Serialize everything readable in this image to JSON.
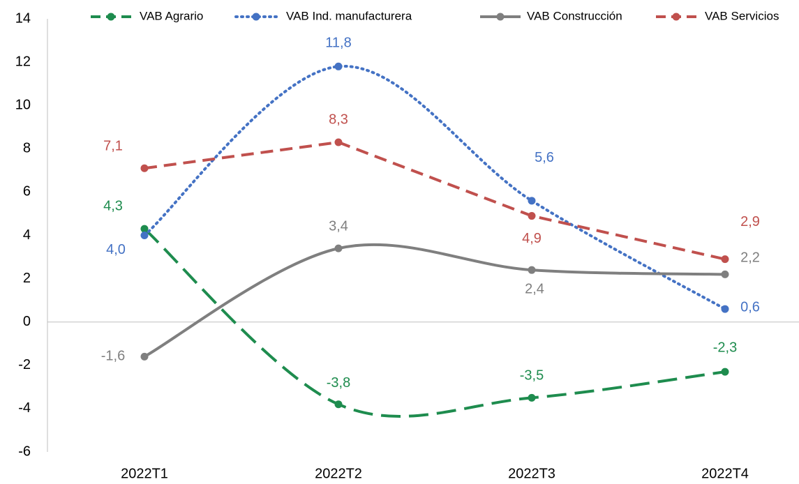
{
  "chart_data": {
    "type": "line",
    "categories": [
      "2022T1",
      "2022T2",
      "2022T3",
      "2022T4"
    ],
    "ylim": [
      -6,
      14
    ],
    "yticks": [
      -6,
      -4,
      -2,
      0,
      2,
      4,
      6,
      8,
      10,
      12,
      14
    ],
    "grid": false,
    "legend": "top",
    "series": [
      {
        "name": "VAB Agrario",
        "color": "#1e8c4e",
        "dash": "long-dash",
        "smooth": true,
        "values": [
          4.3,
          -3.8,
          -3.5,
          -2.3
        ],
        "value_labels": [
          "4,3",
          "-3,8",
          "-3,5",
          "-2,3"
        ]
      },
      {
        "name": "VAB Ind. manufacturera",
        "color": "#4472c4",
        "dash": "dot",
        "smooth": true,
        "values": [
          4.0,
          11.8,
          5.6,
          0.6
        ],
        "value_labels": [
          "4,0",
          "11,8",
          "5,6",
          "0,6"
        ]
      },
      {
        "name": "VAB Construcción",
        "color": "#7f7f7f",
        "dash": "solid",
        "smooth": true,
        "values": [
          -1.6,
          3.4,
          2.4,
          2.2
        ],
        "value_labels": [
          "-1,6",
          "3,4",
          "2,4",
          "2,2"
        ]
      },
      {
        "name": "VAB Servicios",
        "color": "#c0504d",
        "dash": "dash",
        "smooth": false,
        "values": [
          7.1,
          8.3,
          4.9,
          2.9
        ],
        "value_labels": [
          "7,1",
          "8,3",
          "4,9",
          "2,9"
        ]
      }
    ]
  }
}
